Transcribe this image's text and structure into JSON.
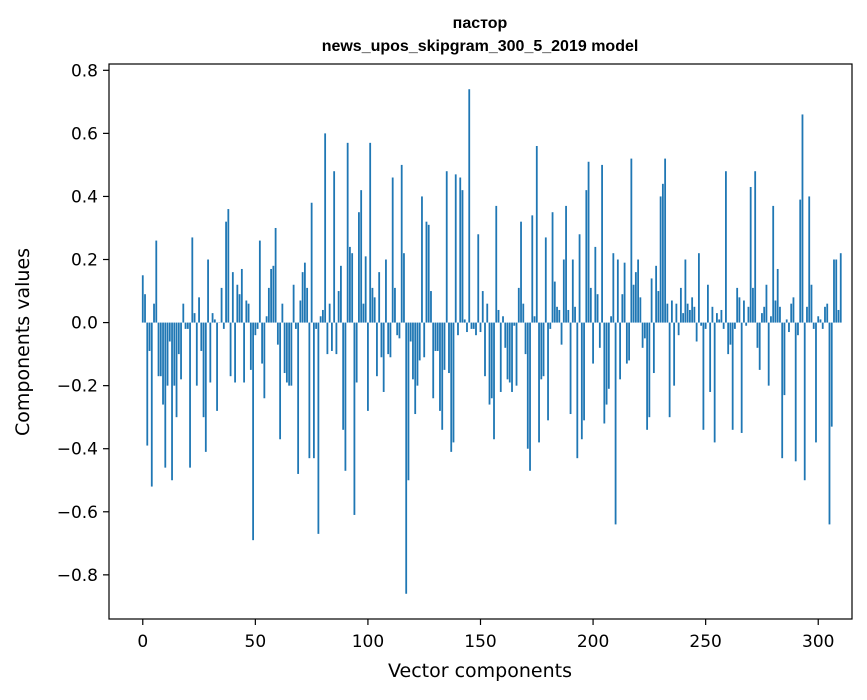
{
  "chart_data": {
    "type": "bar",
    "title_line1": "пастор",
    "title_line2": "news_upos_skipgram_300_5_2019 model",
    "xlabel": "Vector components",
    "ylabel": "Components values",
    "xlim": [
      -15,
      315
    ],
    "ylim": [
      -0.94,
      0.82
    ],
    "x_ticks": [
      0,
      50,
      100,
      150,
      200,
      250,
      300
    ],
    "x_tick_labels": [
      "0",
      "50",
      "100",
      "150",
      "200",
      "250",
      "300"
    ],
    "y_ticks": [
      0.8,
      0.6,
      0.4,
      0.2,
      0.0,
      -0.2,
      -0.4,
      -0.6,
      -0.8
    ],
    "y_tick_labels": [
      "0.8",
      "0.6",
      "0.4",
      "0.2",
      "0.0",
      "−0.2",
      "−0.4",
      "−0.6",
      "−0.8"
    ],
    "bar_color": "#1f77b4",
    "grid": false,
    "legend": "none",
    "values": [
      0.15,
      0.09,
      -0.39,
      -0.09,
      -0.52,
      0.06,
      0.26,
      -0.17,
      -0.17,
      -0.26,
      -0.46,
      -0.2,
      -0.06,
      -0.5,
      -0.2,
      -0.3,
      -0.1,
      -0.18,
      0.06,
      -0.02,
      -0.02,
      -0.46,
      0.27,
      0.03,
      -0.2,
      0.08,
      -0.09,
      -0.3,
      -0.41,
      0.2,
      -0.19,
      0.03,
      0.01,
      -0.28,
      0.0,
      0.11,
      -0.02,
      0.32,
      0.36,
      -0.17,
      0.16,
      -0.19,
      0.12,
      0.09,
      0.17,
      -0.19,
      0.07,
      0.06,
      -0.15,
      -0.69,
      -0.04,
      -0.02,
      0.26,
      -0.13,
      -0.24,
      0.02,
      0.11,
      0.17,
      0.18,
      0.3,
      -0.07,
      -0.37,
      0.06,
      -0.16,
      -0.19,
      -0.2,
      -0.2,
      0.12,
      -0.02,
      -0.48,
      0.07,
      0.16,
      0.19,
      0.11,
      -0.43,
      0.38,
      -0.43,
      -0.02,
      -0.67,
      0.02,
      0.04,
      0.6,
      -0.1,
      0.06,
      -0.09,
      0.48,
      -0.1,
      0.1,
      0.18,
      -0.34,
      -0.47,
      0.57,
      0.24,
      0.22,
      -0.61,
      -0.19,
      0.35,
      0.42,
      0.06,
      0.21,
      -0.28,
      0.57,
      0.11,
      0.08,
      -0.17,
      0.16,
      -0.11,
      -0.22,
      0.2,
      -0.1,
      -0.11,
      0.46,
      0.11,
      -0.04,
      -0.05,
      0.5,
      0.22,
      -0.86,
      -0.5,
      -0.06,
      -0.18,
      -0.29,
      -0.2,
      -0.12,
      0.4,
      -0.11,
      0.32,
      0.31,
      0.1,
      -0.24,
      -0.09,
      -0.09,
      -0.28,
      -0.34,
      -0.15,
      0.48,
      -0.16,
      -0.41,
      -0.38,
      0.47,
      -0.04,
      0.46,
      0.42,
      0.01,
      -0.03,
      0.74,
      -0.02,
      -0.02,
      -0.04,
      0.28,
      -0.03,
      0.1,
      -0.17,
      0.06,
      -0.26,
      -0.24,
      -0.37,
      0.37,
      0.04,
      -0.22,
      0.02,
      -0.08,
      -0.18,
      -0.19,
      -0.22,
      -0.01,
      -0.2,
      0.11,
      0.32,
      0.06,
      -0.1,
      -0.4,
      -0.47,
      0.34,
      0.02,
      0.56,
      -0.38,
      -0.18,
      -0.17,
      0.27,
      -0.31,
      -0.02,
      0.35,
      0.13,
      0.05,
      0.04,
      -0.07,
      0.2,
      0.37,
      0.04,
      -0.29,
      0.2,
      0.05,
      -0.43,
      0.28,
      -0.37,
      -0.31,
      0.42,
      0.51,
      0.11,
      -0.13,
      0.24,
      0.09,
      -0.08,
      0.5,
      -0.32,
      -0.26,
      -0.21,
      0.02,
      0.22,
      -0.64,
      0.2,
      -0.18,
      0.09,
      0.19,
      -0.13,
      -0.12,
      0.52,
      0.12,
      0.16,
      0.2,
      0.08,
      -0.08,
      -0.05,
      -0.34,
      -0.3,
      0.14,
      -0.16,
      0.18,
      0.1,
      0.4,
      0.44,
      0.52,
      0.06,
      -0.3,
      0.07,
      -0.2,
      0.06,
      -0.04,
      0.11,
      0.03,
      0.2,
      0.06,
      0.04,
      0.08,
      0.05,
      -0.06,
      0.22,
      -0.01,
      -0.34,
      -0.02,
      0.12,
      -0.22,
      0.05,
      -0.38,
      0.03,
      0.01,
      0.04,
      -0.02,
      0.48,
      -0.1,
      -0.07,
      -0.34,
      -0.02,
      0.11,
      0.08,
      -0.35,
      0.07,
      -0.01,
      0.05,
      0.43,
      0.11,
      0.48,
      -0.08,
      -0.15,
      0.03,
      0.05,
      0.12,
      -0.2,
      0.02,
      0.37,
      0.07,
      0.17,
      0.05,
      -0.43,
      -0.23,
      0.01,
      -0.03,
      0.06,
      0.08,
      -0.44,
      -0.04,
      0.39,
      0.66,
      -0.5,
      0.05,
      0.4,
      0.12,
      -0.02,
      -0.38,
      0.02,
      0.01,
      -0.02,
      0.05,
      0.06,
      -0.64,
      -0.33,
      0.2,
      0.2,
      0.04,
      0.22
    ]
  }
}
